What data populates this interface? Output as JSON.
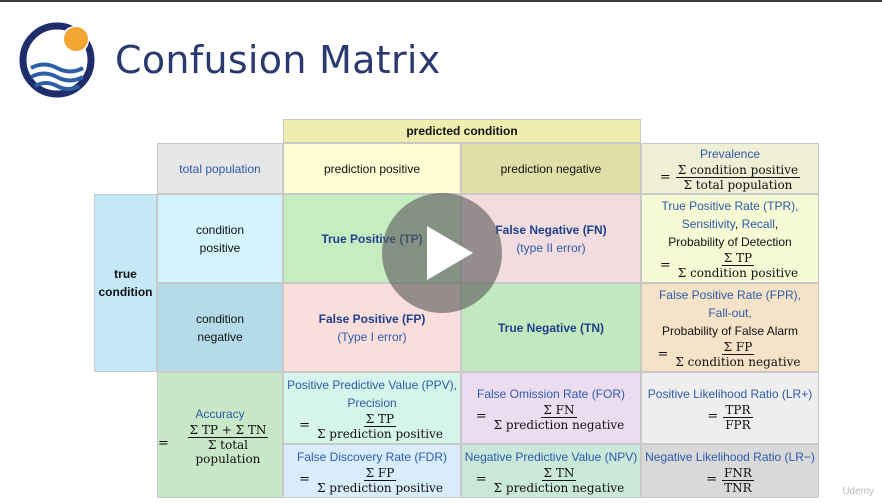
{
  "title": "Confusion Matrix",
  "brand": "Udemy",
  "colors": {
    "title": "#2b3a6e",
    "logo_ring": "#1f2d6b",
    "logo_sun": "#f2a533",
    "logo_wave": "#2d5fa6"
  },
  "header": {
    "predicted_condition": "predicted condition",
    "total_population": "total population",
    "prediction_positive": "prediction positive",
    "prediction_negative": "prediction negative",
    "true_condition_line1": "true",
    "true_condition_line2": "condition",
    "condition_positive_line1": "condition",
    "condition_positive_line2": "positive",
    "condition_negative_line1": "condition",
    "condition_negative_line2": "negative"
  },
  "cells": {
    "tp": "True Positive (TP)",
    "fn": "False Negative (FN)",
    "fn_sub": "(type II error)",
    "fp": "False Positive (FP)",
    "fp_sub": "(Type I error)",
    "tn": "True Negative (TN)"
  },
  "metrics": {
    "prevalence": {
      "label": "Prevalence",
      "eq": "=",
      "num": "Σ condition positive",
      "den": "Σ total population"
    },
    "tpr": {
      "line1": "True Positive Rate (TPR),",
      "sens": "Sensitivity",
      "comma": ",",
      "recall": "Recall",
      "comma2": ",",
      "line3": "Probability of Detection",
      "eq": "=",
      "num": "Σ TP",
      "den": "Σ condition positive"
    },
    "fpr": {
      "line1": "False Positive Rate (FPR),",
      "line2": "Fall-out,",
      "line3": "Probability of False Alarm",
      "eq": "=",
      "num": "Σ FP",
      "den": "Σ condition negative"
    },
    "accuracy": {
      "label": "Accuracy",
      "eq": "=",
      "num": "Σ TP + Σ TN",
      "den": "Σ total population"
    },
    "ppv": {
      "line1": "Positive Predictive Value (PPV),",
      "line2": "Precision",
      "eq": "=",
      "num": "Σ TP",
      "den": "Σ prediction positive"
    },
    "for": {
      "line1": "False Omission Rate (FOR)",
      "eq": "=",
      "num": "Σ FN",
      "den": "Σ prediction negative"
    },
    "lrp": {
      "line1": "Positive Likelihood Ratio (LR+)",
      "eq": "=",
      "num": "TPR",
      "den": "FPR"
    },
    "fdr": {
      "line1": "False Discovery Rate (FDR)",
      "eq": "=",
      "num": "Σ FP",
      "den": "Σ prediction positive"
    },
    "npv": {
      "line1": "Negative Predictive Value (NPV)",
      "eq": "=",
      "num": "Σ TN",
      "den": "Σ prediction negative"
    },
    "lrn": {
      "line1": "Negative Likelihood Ratio (LR−)",
      "eq": "=",
      "num": "FNR",
      "den": "TNR"
    }
  }
}
